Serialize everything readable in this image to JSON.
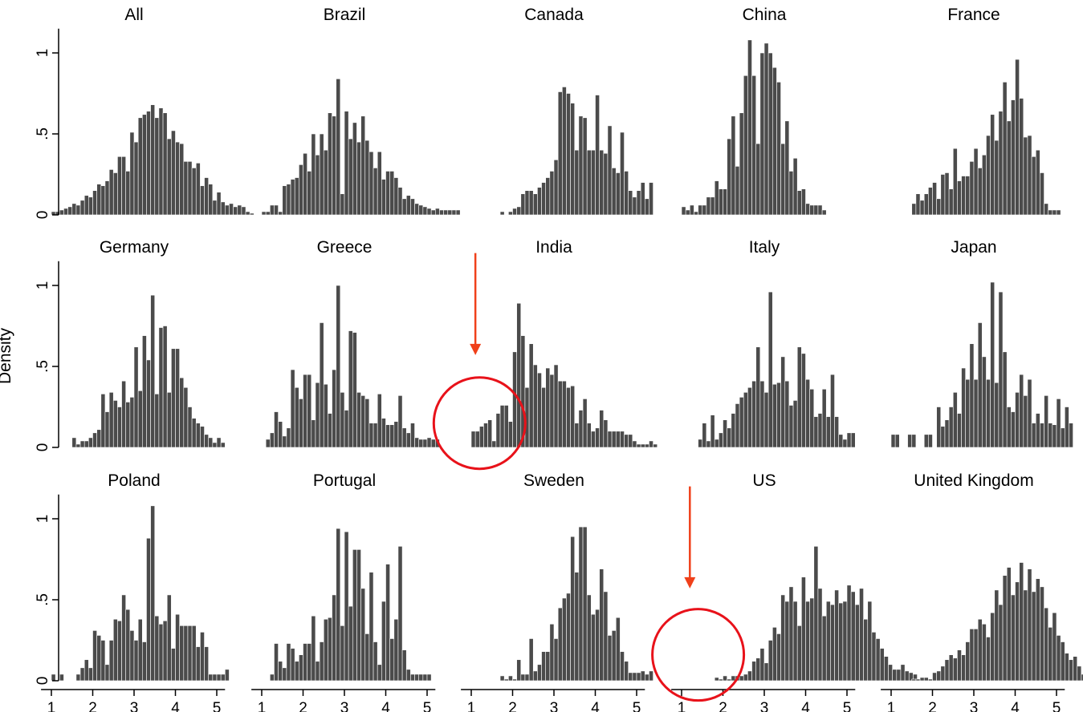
{
  "chart_data": {
    "type": "bar",
    "layout": "small-multiples 3x5",
    "ylabel": "Density",
    "ylim": [
      0,
      1.15
    ],
    "xlim": [
      0.75,
      5.2
    ],
    "bin_width": 0.1,
    "x_ticks": [
      "1",
      "2",
      "3",
      "4",
      "5"
    ],
    "y_ticks": [
      "0",
      ".5",
      "1"
    ],
    "colors": {
      "bar": "#4b4b4b",
      "annotation_circle": "#e8121a",
      "annotation_arrow": "#f0401a"
    },
    "panels": [
      {
        "title": "All",
        "start": 1.0,
        "values": [
          0.02,
          0.02,
          0.03,
          0.04,
          0.05,
          0.07,
          0.06,
          0.09,
          0.12,
          0.11,
          0.15,
          0.19,
          0.18,
          0.21,
          0.28,
          0.26,
          0.36,
          0.36,
          0.27,
          0.51,
          0.45,
          0.6,
          0.62,
          0.64,
          0.68,
          0.6,
          0.66,
          0.63,
          0.47,
          0.52,
          0.45,
          0.44,
          0.33,
          0.33,
          0.29,
          0.32,
          0.18,
          0.23,
          0.19,
          0.09,
          0.14,
          0.08,
          0.06,
          0.07,
          0.05,
          0.06,
          0.05,
          0.02,
          0.01
        ]
      },
      {
        "title": "Brazil",
        "start": 1.0,
        "values": [
          0.02,
          0.02,
          0.06,
          0.06,
          0.02,
          0.18,
          0.19,
          0.22,
          0.23,
          0.31,
          0.38,
          0.27,
          0.5,
          0.37,
          0.5,
          0.4,
          0.63,
          0.61,
          0.84,
          0.13,
          0.64,
          0.47,
          0.57,
          0.45,
          0.61,
          0.46,
          0.39,
          0.29,
          0.39,
          0.22,
          0.27,
          0.27,
          0.23,
          0.17,
          0.1,
          0.12,
          0.1,
          0.07,
          0.06,
          0.05,
          0.04,
          0.03,
          0.04,
          0.03,
          0.03,
          0.03,
          0.03,
          0.03
        ]
      },
      {
        "title": "Canada",
        "start": 0.8,
        "values": [
          0,
          0,
          0,
          0,
          0,
          0,
          0,
          0,
          0,
          0.02,
          0,
          0.02,
          0.04,
          0.05,
          0.13,
          0.15,
          0.15,
          0.13,
          0.17,
          0.2,
          0.23,
          0.27,
          0.34,
          0.76,
          0.79,
          0.75,
          0.69,
          0.4,
          0.61,
          0.6,
          0.4,
          0.4,
          0.74,
          0.4,
          0.38,
          0.55,
          0.29,
          0.26,
          0.51,
          0.27,
          0.15,
          0.11,
          0.15,
          0.2,
          0.1,
          0.2
        ]
      },
      {
        "title": "China",
        "start": 1.0,
        "values": [
          0.05,
          0.03,
          0.06,
          0.02,
          0.06,
          0.06,
          0.11,
          0.11,
          0.21,
          0.16,
          0.16,
          0.47,
          0.61,
          0.3,
          0.63,
          0.86,
          1.08,
          0.86,
          0.44,
          1.0,
          1.06,
          1.0,
          0.91,
          0.82,
          0.44,
          0.58,
          0.27,
          0.35,
          0.15,
          0.16,
          0.07,
          0.06,
          0.06,
          0.06,
          0.03
        ]
      },
      {
        "title": "France",
        "start": 1.5,
        "values": [
          0.07,
          0.13,
          0.09,
          0.13,
          0.17,
          0.2,
          0.1,
          0.25,
          0.26,
          0.16,
          0.41,
          0.21,
          0.24,
          0.24,
          0.33,
          0.41,
          0.29,
          0.37,
          0.49,
          0.62,
          0.46,
          0.64,
          0.82,
          0.58,
          0.71,
          0.96,
          0.72,
          0.48,
          0.49,
          0.36,
          0.4,
          0.26,
          0.07,
          0.03,
          0.03,
          0.03
        ]
      },
      {
        "title": "Germany",
        "start": 1.5,
        "values": [
          0.06,
          0.02,
          0.04,
          0.04,
          0.06,
          0.09,
          0.11,
          0.33,
          0.22,
          0.34,
          0.29,
          0.25,
          0.41,
          0.28,
          0.31,
          0.62,
          0.35,
          0.69,
          0.54,
          0.94,
          0.33,
          0.74,
          0.75,
          0.34,
          0.61,
          0.61,
          0.43,
          0.37,
          0.25,
          0.18,
          0.15,
          0.13,
          0.08,
          0.06,
          0.03,
          0.06,
          0.03
        ]
      },
      {
        "title": "Greece",
        "start": 1.1,
        "values": [
          0.05,
          0.09,
          0.22,
          0.16,
          0.07,
          0.12,
          0.48,
          0.37,
          0.3,
          0.45,
          0.45,
          0.17,
          0.4,
          0.77,
          0.39,
          0.21,
          0.48,
          1.0,
          0.34,
          0.23,
          0.72,
          0.71,
          0.34,
          0.32,
          0.3,
          0.15,
          0.15,
          0.33,
          0.18,
          0.14,
          0.14,
          0.16,
          0.32,
          0.12,
          0.09,
          0.15,
          0.06,
          0.05,
          0.05,
          0.06,
          0.05,
          0.05
        ]
      },
      {
        "title": "India",
        "start": 1.0,
        "values": [
          0.1,
          0.1,
          0.13,
          0.15,
          0.17,
          0.04,
          0.21,
          0.26,
          0.26,
          0.16,
          0.59,
          0.89,
          0.69,
          0.37,
          0.64,
          0.51,
          0.46,
          0.37,
          0.49,
          0.45,
          0.51,
          0.41,
          0.41,
          0.37,
          0.38,
          0.15,
          0.23,
          0.3,
          0.15,
          0.1,
          0.12,
          0.23,
          0.17,
          0.1,
          0.1,
          0.1,
          0.1,
          0.08,
          0.08,
          0.04,
          0.02,
          0.02,
          0.02,
          0.04,
          0.02
        ]
      },
      {
        "title": "Italy",
        "start": 1.0,
        "values": [
          0,
          0,
          0,
          0,
          0.05,
          0.15,
          0.04,
          0.2,
          0.05,
          0.09,
          0.17,
          0.12,
          0.21,
          0.27,
          0.31,
          0.34,
          0.37,
          0.41,
          0.62,
          0.41,
          0.34,
          0.96,
          0.39,
          0.4,
          0.56,
          0.41,
          0.26,
          0.29,
          0.62,
          0.58,
          0.42,
          0.36,
          0.19,
          0.21,
          0.36,
          0.19,
          0.45,
          0.19,
          0.08,
          0.05,
          0.09,
          0.09
        ]
      },
      {
        "title": "Japan",
        "start": 1.0,
        "values": [
          0.08,
          0.08,
          0,
          0,
          0.08,
          0.08,
          0,
          0,
          0.08,
          0.08,
          0,
          0.25,
          0.13,
          0.17,
          0.25,
          0.34,
          0.21,
          0.49,
          0.42,
          0.64,
          0.42,
          0.77,
          0.56,
          0.42,
          1.02,
          0.4,
          0.96,
          0.59,
          0.25,
          0.22,
          0.34,
          0.45,
          0.32,
          0.42,
          0.15,
          0.21,
          0.15,
          0.32,
          0.15,
          0.14,
          0.3,
          0.12,
          0.25,
          0.15
        ]
      },
      {
        "title": "Poland",
        "start": 1.0,
        "values": [
          0.04,
          0.0,
          0.04,
          0.0,
          0.0,
          0.0,
          0.04,
          0.08,
          0.13,
          0.08,
          0.31,
          0.28,
          0.25,
          0.1,
          0.25,
          0.38,
          0.37,
          0.53,
          0.44,
          0.31,
          0.25,
          0.38,
          0.24,
          0.88,
          1.08,
          0.4,
          0.35,
          0.37,
          0.53,
          0.2,
          0.41,
          0.34,
          0.34,
          0.34,
          0.34,
          0.21,
          0.3,
          0.21,
          0.04,
          0.04,
          0.04,
          0.04,
          0.07
        ]
      },
      {
        "title": "Portugal",
        "start": 1.2,
        "values": [
          0.04,
          0.23,
          0.12,
          0.08,
          0.23,
          0.2,
          0.12,
          0.16,
          0.23,
          0.23,
          0.4,
          0.12,
          0.24,
          0.38,
          0.39,
          0.53,
          0.94,
          0.34,
          0.92,
          0.46,
          0.81,
          0.81,
          0.57,
          0.29,
          0.67,
          0.24,
          0.1,
          0.49,
          0.72,
          0.26,
          0.38,
          0.83,
          0.19,
          0.07,
          0.04,
          0.04,
          0.04,
          0.04,
          0.04
        ]
      },
      {
        "title": "Sweden",
        "start": 1.0,
        "values": [
          0,
          0,
          0,
          0,
          0,
          0,
          0,
          0.03,
          0.01,
          0.03,
          0.01,
          0.13,
          0.04,
          0.04,
          0.26,
          0.06,
          0.1,
          0.18,
          0.18,
          0.35,
          0.26,
          0.45,
          0.51,
          0.54,
          0.89,
          0.67,
          0.95,
          0.95,
          0.53,
          0.41,
          0.44,
          0.69,
          0.55,
          0.28,
          0.31,
          0.39,
          0.18,
          0.12,
          0.05,
          0.05,
          0.05,
          0.06,
          0.04,
          0.06
        ]
      },
      {
        "title": "US",
        "start": 1.0,
        "values": [
          0,
          0,
          0,
          0,
          0,
          0,
          0,
          0,
          0.02,
          0.01,
          0.03,
          0.01,
          0.03,
          0.03,
          0.03,
          0.04,
          0.06,
          0.12,
          0.14,
          0.2,
          0.11,
          0.25,
          0.33,
          0.29,
          0.53,
          0.49,
          0.58,
          0.49,
          0.34,
          0.64,
          0.49,
          0.51,
          0.83,
          0.57,
          0.4,
          0.49,
          0.47,
          0.56,
          0.48,
          0.49,
          0.59,
          0.55,
          0.47,
          0.57,
          0.38,
          0.49,
          0.3,
          0.26,
          0.2,
          0.15,
          0.1,
          0.07,
          0.07,
          0.1,
          0.06,
          0.05,
          0.04
        ]
      },
      {
        "title": "United Kingdom",
        "start": 1.0,
        "values": [
          0,
          0,
          0,
          0,
          0,
          0.01,
          0.01,
          0.02,
          0.02,
          0.01,
          0.05,
          0.06,
          0.09,
          0.13,
          0.16,
          0.14,
          0.19,
          0.16,
          0.24,
          0.32,
          0.32,
          0.38,
          0.35,
          0.27,
          0.42,
          0.56,
          0.47,
          0.65,
          0.7,
          0.53,
          0.61,
          0.73,
          0.56,
          0.69,
          0.55,
          0.63,
          0.58,
          0.45,
          0.33,
          0.42,
          0.28,
          0.24,
          0.17,
          0.13,
          0.15,
          0.09,
          0.04,
          0.03,
          0.02
        ]
      }
    ],
    "annotations": [
      {
        "type": "circle",
        "panel": "India",
        "x": 1.2,
        "y": 0.15
      },
      {
        "type": "arrow",
        "panel": "India",
        "x": 1.1,
        "y_from": 1.2,
        "y_to": 0.57
      },
      {
        "type": "circle",
        "panel": "US",
        "x": 1.4,
        "y": 0.16
      },
      {
        "type": "arrow",
        "panel": "US",
        "x": 1.2,
        "y_from": 1.2,
        "y_to": 0.57
      }
    ]
  }
}
